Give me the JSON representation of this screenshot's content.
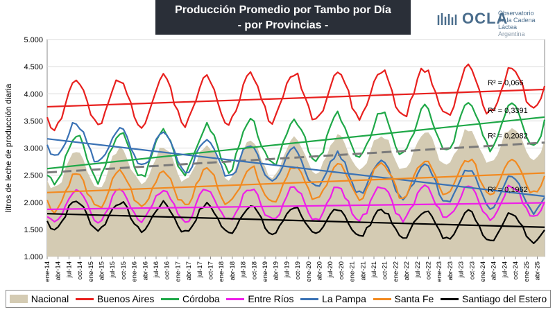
{
  "header": {
    "title_line1": "Producción Promedio por Tambo por Día",
    "title_line2": "- por Provincias -"
  },
  "logo": {
    "name": "OCLA",
    "sub1": "Observatorio",
    "sub2": "de la Cadena Láctea",
    "sub3": "Argentina",
    "color": "#4a6d8c"
  },
  "chart_data": {
    "type": "line",
    "ylabel": "litros de leche de producción diaria",
    "ylim": [
      1000,
      5000
    ],
    "yticks": [
      "1.000",
      "1.500",
      "2.000",
      "2.500",
      "3.000",
      "3.500",
      "4.000",
      "4.500",
      "5.000"
    ],
    "ytick_values": [
      1000,
      1500,
      2000,
      2500,
      3000,
      3500,
      4000,
      4500,
      5000
    ],
    "xticks": [
      "ene-14",
      "abr-14",
      "jul-14",
      "oct-14",
      "ene-15",
      "abr-15",
      "jul-15",
      "oct-15",
      "ene-16",
      "abr-16",
      "jul-16",
      "oct-16",
      "ene-17",
      "abr-17",
      "jul-17",
      "oct-17",
      "ene-18",
      "abr-18",
      "jul-18",
      "oct-18",
      "ene-19",
      "abr-19",
      "jul-19",
      "oct-19",
      "ene-20",
      "abr-20",
      "jul-20",
      "oct-20",
      "ene-21",
      "abr-21",
      "jul-21",
      "oct-21",
      "ene-22",
      "abr-22",
      "jul-22",
      "oct-22",
      "ene-23",
      "abr-23",
      "jul-23",
      "oct-23",
      "ene-24",
      "abr-24",
      "jul-24",
      "oct-24",
      "ene-25",
      "abr-25"
    ],
    "months": 138,
    "series": [
      {
        "name": "Nacional",
        "kind": "area",
        "color": "#d4cbb3",
        "base": 2560,
        "trend": 4.0,
        "amp": 330,
        "lag": 1,
        "seed": 1
      },
      {
        "name": "Buenos Aires",
        "color": "#e8201e",
        "base": 3800,
        "trend": 2.2,
        "amp": 430,
        "lag": 1,
        "seed": 2
      },
      {
        "name": "Córdoba",
        "color": "#1fa848",
        "base": 2750,
        "trend": 5.5,
        "amp": 420,
        "lag": 1,
        "seed": 3
      },
      {
        "name": "Entre Ríos",
        "color": "#ee1ee8",
        "base": 1930,
        "trend": 0.6,
        "amp": 300,
        "lag": 1,
        "seed": 4
      },
      {
        "name": "La Pampa",
        "color": "#3a72b5",
        "base": 3180,
        "trend": -7.8,
        "amp": 330,
        "lag": 1,
        "seed": 5
      },
      {
        "name": "Santa Fe",
        "color": "#f28a20",
        "base": 2180,
        "trend": 2.5,
        "amp": 330,
        "lag": 1,
        "seed": 6
      },
      {
        "name": "Santiago del Estero",
        "color": "#000000",
        "base": 1780,
        "trend": -1.8,
        "amp": 260,
        "lag": 1,
        "seed": 7
      }
    ],
    "trendlines": [
      {
        "series": "Buenos Aires",
        "start": 3760,
        "end": 4080,
        "color": "#e8201e",
        "r2": "R² = 0,066"
      },
      {
        "series": "Córdoba",
        "start": 2620,
        "end": 3570,
        "color": "#1fa848",
        "r2": "R² = 0,3391"
      },
      {
        "series": "Nacional",
        "start": 2550,
        "end": 3100,
        "color": "#7a7a7a",
        "dashed": true,
        "r2": "R² = 0,2082"
      },
      {
        "series": "La Pampa",
        "start": 3170,
        "end": 2110,
        "color": "#3a72b5",
        "r2": "R² = 0,1962"
      },
      {
        "series": "Santa Fe",
        "start": 2180,
        "end": 2540,
        "color": "#f28a20"
      },
      {
        "series": "Entre Ríos",
        "start": 1870,
        "end": 1990,
        "color": "#ee1ee8"
      },
      {
        "series": "Santiago del Estero",
        "start": 1790,
        "end": 1540,
        "color": "#000000"
      }
    ],
    "legend": [
      "Nacional",
      "Buenos Aires",
      "Córdoba",
      "Entre Ríos",
      "La Pampa",
      "Santa Fe",
      "Santiago del Estero"
    ],
    "legend_position": "bottom",
    "grid": true
  }
}
